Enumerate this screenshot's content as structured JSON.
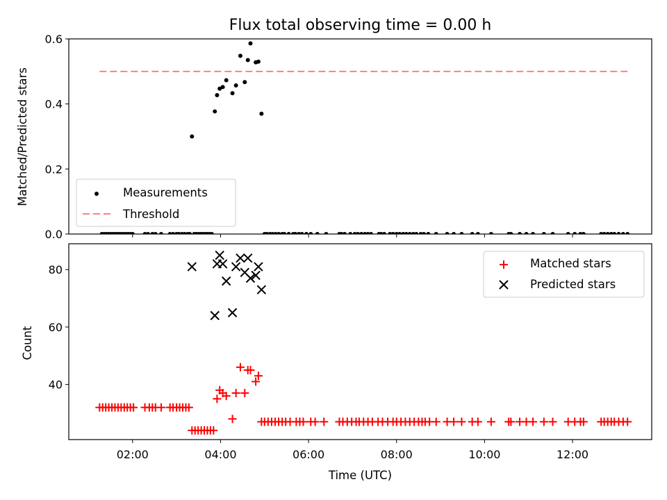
{
  "chart_data": [
    {
      "type": "scatter",
      "title": "Flux total observing time = 0.00 h",
      "xlabel": "",
      "ylabel": "Matched/Predicted stars",
      "xlim": [
        0.55,
        13.8
      ],
      "ylim": [
        0,
        0.6
      ],
      "yticks": [
        0.0,
        0.2,
        0.4,
        0.6
      ],
      "ytick_labels": [
        "0.0",
        "0.2",
        "0.4",
        "0.6"
      ],
      "legend": {
        "placement": "lower-left",
        "entries": [
          "Measurements",
          "Threshold"
        ]
      },
      "threshold": {
        "name": "Threshold",
        "value": 0.5,
        "x": [
          1.25,
          13.25
        ],
        "color": "#ff7f7f"
      },
      "series": [
        {
          "name": "Measurements",
          "color": "#000000",
          "x": [
            3.35,
            3.87,
            3.92,
            3.98,
            4.05,
            4.13,
            4.27,
            4.35,
            4.45,
            4.55,
            4.62,
            4.68,
            4.8,
            4.86,
            4.93,
            1.3,
            1.35,
            1.4,
            1.45,
            1.5,
            1.55,
            1.6,
            1.65,
            1.7,
            1.75,
            1.8,
            1.85,
            1.9,
            1.95,
            2.0,
            2.28,
            2.35,
            2.45,
            2.52,
            2.65,
            2.85,
            2.92,
            3.0,
            3.05,
            3.12,
            3.18,
            3.25,
            3.3,
            3.4,
            3.45,
            3.5,
            3.55,
            3.6,
            3.65,
            3.7,
            3.75,
            3.8,
            5.0,
            5.05,
            5.12,
            5.18,
            5.25,
            5.32,
            5.4,
            5.45,
            5.55,
            5.65,
            5.7,
            5.78,
            5.85,
            5.95,
            6.05,
            6.2,
            6.4,
            6.7,
            6.75,
            6.82,
            6.95,
            7.05,
            7.12,
            7.2,
            7.28,
            7.35,
            7.42,
            7.6,
            7.65,
            7.72,
            7.85,
            7.92,
            8.0,
            8.07,
            8.15,
            8.22,
            8.3,
            8.38,
            8.45,
            8.55,
            8.62,
            8.72,
            8.9,
            9.15,
            9.3,
            9.48,
            9.72,
            9.85,
            10.15,
            10.55,
            10.6,
            10.8,
            10.95,
            11.1,
            11.35,
            11.55,
            11.9,
            12.05,
            12.18,
            12.25,
            12.65,
            12.72,
            12.8,
            12.88,
            12.95,
            13.05,
            13.15,
            13.25
          ],
          "y": [
            0.3,
            0.377,
            0.427,
            0.447,
            0.452,
            0.473,
            0.433,
            0.457,
            0.548,
            0.467,
            0.535,
            0.586,
            0.528,
            0.53,
            0.37,
            0,
            0,
            0,
            0,
            0,
            0,
            0,
            0,
            0,
            0,
            0,
            0,
            0,
            0,
            0,
            0,
            0,
            0,
            0,
            0,
            0,
            0,
            0,
            0,
            0,
            0,
            0,
            0,
            0,
            0,
            0,
            0,
            0,
            0,
            0,
            0,
            0,
            0,
            0,
            0,
            0,
            0,
            0,
            0,
            0,
            0,
            0,
            0,
            0,
            0,
            0,
            0,
            0,
            0,
            0,
            0,
            0,
            0,
            0,
            0,
            0,
            0,
            0,
            0,
            0,
            0,
            0,
            0,
            0,
            0,
            0,
            0,
            0,
            0,
            0,
            0,
            0,
            0,
            0,
            0,
            0,
            0,
            0,
            0,
            0,
            0,
            0,
            0,
            0,
            0,
            0,
            0,
            0,
            0,
            0,
            0,
            0,
            0,
            0,
            0,
            0,
            0,
            0,
            0,
            0
          ]
        }
      ]
    },
    {
      "type": "scatter",
      "title": "",
      "xlabel": "Time (UTC)",
      "ylabel": "Count",
      "xlim": [
        0.55,
        13.8
      ],
      "ylim": [
        20.8,
        89
      ],
      "xticks": [
        2,
        4,
        6,
        8,
        10,
        12
      ],
      "xtick_labels": [
        "02:00",
        "04:00",
        "06:00",
        "08:00",
        "10:00",
        "12:00"
      ],
      "yticks": [
        40,
        60,
        80
      ],
      "ytick_labels": [
        "40",
        "60",
        "80"
      ],
      "legend": {
        "placement": "upper-right",
        "entries": [
          "Matched stars",
          "Predicted stars"
        ]
      },
      "series": [
        {
          "name": "Matched stars",
          "marker": "plus",
          "color": "#ff0000",
          "x": [
            1.25,
            1.32,
            1.39,
            1.46,
            1.53,
            1.6,
            1.67,
            1.74,
            1.81,
            1.88,
            1.95,
            2.02,
            2.28,
            2.38,
            2.45,
            2.52,
            2.65,
            2.85,
            2.92,
            3.0,
            3.07,
            3.14,
            3.21,
            3.28,
            3.35,
            3.42,
            3.49,
            3.56,
            3.63,
            3.7,
            3.77,
            3.84,
            3.92,
            3.98,
            4.05,
            4.13,
            4.27,
            4.35,
            4.45,
            4.55,
            4.62,
            4.68,
            4.8,
            4.86,
            4.93,
            5.0,
            5.08,
            5.16,
            5.24,
            5.32,
            5.4,
            5.48,
            5.58,
            5.72,
            5.8,
            5.88,
            6.05,
            6.15,
            6.35,
            6.7,
            6.78,
            6.88,
            6.98,
            7.08,
            7.15,
            7.25,
            7.35,
            7.45,
            7.58,
            7.68,
            7.8,
            7.92,
            8.0,
            8.1,
            8.2,
            8.3,
            8.4,
            8.5,
            8.58,
            8.65,
            8.75,
            8.9,
            9.15,
            9.3,
            9.48,
            9.72,
            9.85,
            10.15,
            10.55,
            10.6,
            10.8,
            10.95,
            11.1,
            11.35,
            11.55,
            11.9,
            12.05,
            12.18,
            12.25,
            12.65,
            12.72,
            12.8,
            12.88,
            12.95,
            13.05,
            13.15,
            13.25
          ],
          "y": [
            32,
            32,
            32,
            32,
            32,
            32,
            32,
            32,
            32,
            32,
            32,
            32,
            32,
            32,
            32,
            32,
            32,
            32,
            32,
            32,
            32,
            32,
            32,
            32,
            24,
            24,
            24,
            24,
            24,
            24,
            24,
            24,
            35,
            38,
            37,
            36,
            28,
            37,
            46,
            37,
            45,
            45,
            41,
            43,
            27,
            27,
            27,
            27,
            27,
            27,
            27,
            27,
            27,
            27,
            27,
            27,
            27,
            27,
            27,
            27,
            27,
            27,
            27,
            27,
            27,
            27,
            27,
            27,
            27,
            27,
            27,
            27,
            27,
            27,
            27,
            27,
            27,
            27,
            27,
            27,
            27,
            27,
            27,
            27,
            27,
            27,
            27,
            27,
            27,
            27,
            27,
            27,
            27,
            27,
            27,
            27,
            27,
            27,
            27,
            27,
            27,
            27,
            27,
            27,
            27,
            27,
            27
          ]
        },
        {
          "name": "Predicted stars",
          "marker": "x",
          "color": "#000000",
          "x": [
            3.35,
            3.87,
            3.92,
            3.98,
            4.05,
            4.13,
            4.27,
            4.35,
            4.45,
            4.55,
            4.62,
            4.68,
            4.8,
            4.86,
            4.93
          ],
          "y": [
            81,
            64,
            82,
            85,
            82,
            76,
            65,
            81,
            84,
            79,
            84,
            77,
            78,
            81,
            73
          ]
        }
      ]
    }
  ]
}
